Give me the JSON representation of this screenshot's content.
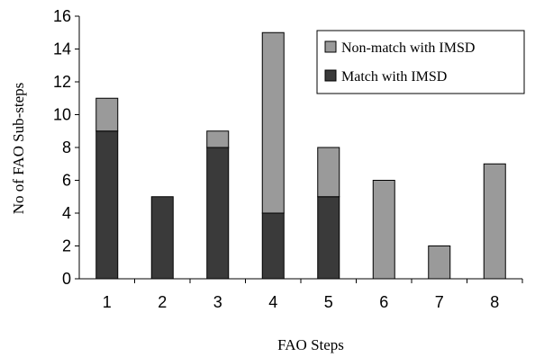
{
  "chart_data": {
    "type": "bar",
    "stacked": true,
    "categories": [
      "1",
      "2",
      "3",
      "4",
      "5",
      "6",
      "7",
      "8"
    ],
    "series": [
      {
        "name": "Match with IMSD",
        "color": "#3a3a3a",
        "values": [
          9,
          5,
          8,
          4,
          5,
          0,
          0,
          0
        ]
      },
      {
        "name": "Non-match with IMSD",
        "color": "#9a9a9a",
        "values": [
          2,
          0,
          1,
          11,
          3,
          6,
          2,
          7
        ]
      }
    ],
    "xlabel": "FAO Steps",
    "ylabel": "No of FAO Sub-steps",
    "ylim": [
      0,
      16
    ],
    "yticks": [
      "0",
      "2",
      "4",
      "6",
      "8",
      "10",
      "12",
      "14",
      "16"
    ],
    "grid": false,
    "legend_position": "top-right",
    "legend_order": [
      "Non-match with IMSD",
      "Match with IMSD"
    ]
  }
}
